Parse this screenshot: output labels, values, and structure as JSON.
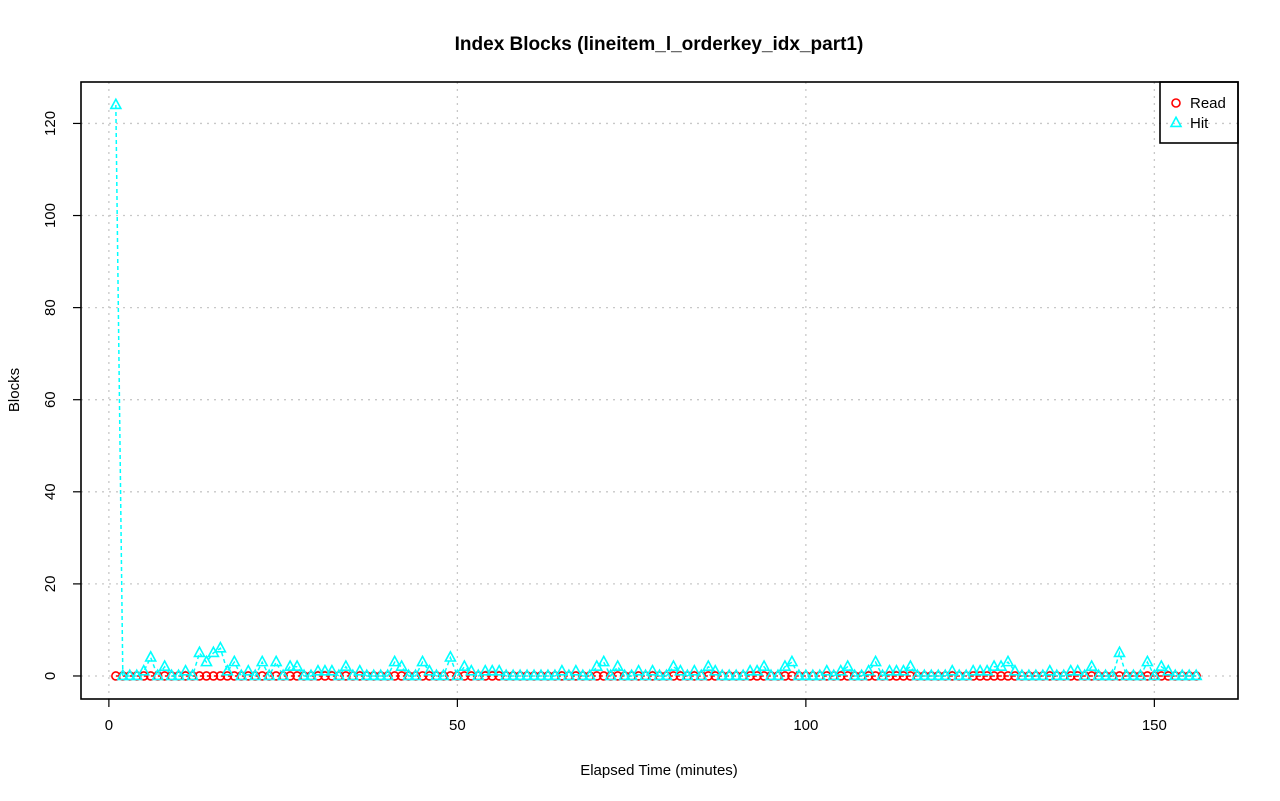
{
  "chart_data": {
    "type": "line",
    "title": "Index Blocks (lineitem_l_orderkey_idx_part1)",
    "xlabel": "Elapsed Time (minutes)",
    "ylabel": "Blocks",
    "xlim": [
      -4,
      162
    ],
    "ylim": [
      -5,
      129
    ],
    "xticks": [
      0,
      50,
      100,
      150
    ],
    "yticks": [
      0,
      20,
      40,
      60,
      80,
      100,
      120
    ],
    "grid": true,
    "legend_position": "top-right",
    "x": [
      1,
      2,
      3,
      4,
      5,
      6,
      7,
      8,
      9,
      10,
      11,
      12,
      13,
      14,
      15,
      16,
      17,
      18,
      19,
      20,
      21,
      22,
      23,
      24,
      25,
      26,
      27,
      28,
      29,
      30,
      31,
      32,
      33,
      34,
      35,
      36,
      37,
      38,
      39,
      40,
      41,
      42,
      43,
      44,
      45,
      46,
      47,
      48,
      49,
      50,
      51,
      52,
      53,
      54,
      55,
      56,
      57,
      58,
      59,
      60,
      61,
      62,
      63,
      64,
      65,
      66,
      67,
      68,
      69,
      70,
      71,
      72,
      73,
      74,
      75,
      76,
      77,
      78,
      79,
      80,
      81,
      82,
      83,
      84,
      85,
      86,
      87,
      88,
      89,
      90,
      91,
      92,
      93,
      94,
      95,
      96,
      97,
      98,
      99,
      100,
      101,
      102,
      103,
      104,
      105,
      106,
      107,
      108,
      109,
      110,
      111,
      112,
      113,
      114,
      115,
      116,
      117,
      118,
      119,
      120,
      121,
      122,
      123,
      124,
      125,
      126,
      127,
      128,
      129,
      130,
      131,
      132,
      133,
      134,
      135,
      136,
      137,
      138,
      139,
      140,
      141,
      142,
      143,
      144,
      145,
      146,
      147,
      148,
      149,
      150,
      151,
      152,
      153,
      154,
      155,
      156
    ],
    "series": [
      {
        "name": "Read",
        "color": "#ff0000",
        "marker": "circle",
        "line_style": "dashed",
        "values": [
          0,
          0,
          0,
          0,
          0,
          0,
          0,
          0,
          0,
          0,
          0,
          0,
          0,
          0,
          0,
          0,
          0,
          0,
          0,
          0,
          0,
          0,
          0,
          0,
          0,
          0,
          0,
          0,
          0,
          0,
          0,
          0,
          0,
          0,
          0,
          0,
          0,
          0,
          0,
          0,
          0,
          0,
          0,
          0,
          0,
          0,
          0,
          0,
          0,
          0,
          0,
          0,
          0,
          0,
          0,
          0,
          0,
          0,
          0,
          0,
          0,
          0,
          0,
          0,
          0,
          0,
          0,
          0,
          0,
          0,
          0,
          0,
          0,
          0,
          0,
          0,
          0,
          0,
          0,
          0,
          0,
          0,
          0,
          0,
          0,
          0,
          0,
          0,
          0,
          0,
          0,
          0,
          0,
          0,
          0,
          0,
          0,
          0,
          0,
          0,
          0,
          0,
          0,
          0,
          0,
          0,
          0,
          0,
          0,
          0,
          0,
          0,
          0,
          0,
          0,
          0,
          0,
          0,
          0,
          0,
          0,
          0,
          0,
          0,
          0,
          0,
          0,
          0,
          0,
          0,
          0,
          0,
          0,
          0,
          0,
          0,
          0,
          0,
          0,
          0,
          0,
          0,
          0,
          0,
          0,
          0,
          0,
          0,
          0,
          0,
          0,
          0,
          0,
          0,
          0,
          0
        ]
      },
      {
        "name": "Hit",
        "color": "#00ffff",
        "marker": "triangle",
        "line_style": "dashed",
        "values": [
          124,
          0,
          0,
          0,
          1,
          4,
          0,
          2,
          0,
          0,
          1,
          0,
          5,
          3,
          5,
          6,
          1,
          3,
          0,
          1,
          0,
          3,
          0,
          3,
          0,
          2,
          2,
          0,
          0,
          1,
          1,
          1,
          0,
          2,
          0,
          1,
          0,
          0,
          0,
          0,
          3,
          2,
          0,
          0,
          3,
          1,
          0,
          0,
          4,
          0,
          2,
          1,
          0,
          1,
          1,
          1,
          0,
          0,
          0,
          0,
          0,
          0,
          0,
          0,
          1,
          0,
          1,
          0,
          0,
          2,
          3,
          0,
          2,
          0,
          0,
          1,
          0,
          1,
          0,
          0,
          2,
          1,
          0,
          1,
          0,
          2,
          1,
          0,
          0,
          0,
          0,
          1,
          1,
          2,
          0,
          0,
          2,
          3,
          0,
          0,
          0,
          0,
          1,
          0,
          1,
          2,
          0,
          0,
          1,
          3,
          0,
          1,
          1,
          1,
          2,
          0,
          0,
          0,
          0,
          0,
          1,
          0,
          0,
          1,
          1,
          1,
          2,
          2,
          3,
          1,
          0,
          0,
          0,
          0,
          1,
          0,
          0,
          1,
          1,
          0,
          2,
          0,
          0,
          0,
          5,
          0,
          0,
          0,
          3,
          0,
          2,
          1,
          0,
          0,
          0,
          0
        ]
      }
    ]
  }
}
